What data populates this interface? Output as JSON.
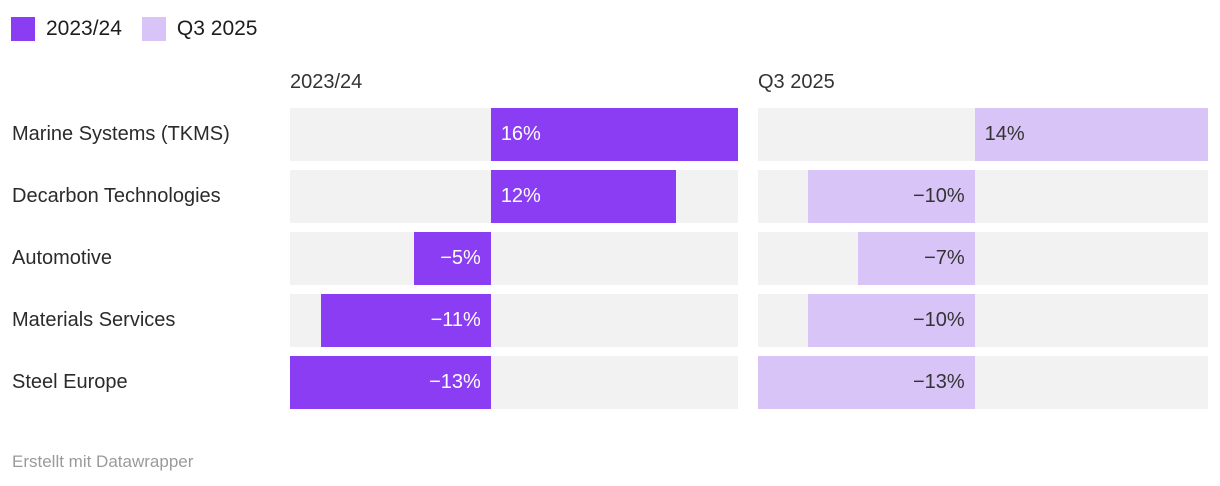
{
  "legend": {
    "items": [
      {
        "label": "2023/24",
        "color": "#8a3df2"
      },
      {
        "label": "Q3 2025",
        "color": "#d9c4f8"
      }
    ]
  },
  "chart_data": {
    "type": "bar",
    "orientation": "horizontal",
    "title": "",
    "categories": [
      "Marine Systems (TKMS)",
      "Decarbon Technologies",
      "Automotive",
      "Materials Services",
      "Steel Europe"
    ],
    "series": [
      {
        "name": "2023/24",
        "values": [
          16,
          12,
          -5,
          -11,
          -13
        ],
        "color": "#8a3df2",
        "value_label_color": "#ffffff",
        "xlim": [
          -13,
          16
        ]
      },
      {
        "name": "Q3 2025",
        "values": [
          14,
          -10,
          -7,
          -10,
          -13
        ],
        "color": "#d9c4f8",
        "value_label_color": "#333333",
        "xlim": [
          -13,
          14
        ]
      }
    ],
    "value_suffix": "%",
    "value_labels_shown": [
      "16%",
      "12%",
      "−5%",
      "−11%",
      "−13%",
      "14%",
      "−10%",
      "−7%",
      "−10%",
      "−13%"
    ],
    "grid": false,
    "legend_position": "top-left",
    "track_color": "#f2f2f2"
  },
  "footer": {
    "text": "Erstellt mit Datawrapper"
  },
  "colors": {
    "track": "#f2f2f2",
    "row_label_text": "#2b2b2b",
    "header_text": "#333333",
    "footer_text": "#9a9a9a",
    "background": "#ffffff"
  }
}
